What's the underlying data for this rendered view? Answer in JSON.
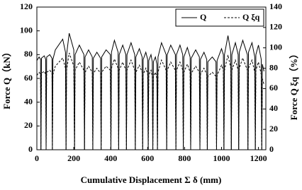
{
  "chart_data": {
    "type": "line",
    "x_label": "Cumulative Displacement Σ δ  (mm)",
    "y_label": "Force Q（kN）",
    "y2_label": "Force Q ξq（%）",
    "x": [
      0,
      12,
      20,
      22,
      25,
      40,
      48,
      50,
      53,
      70,
      82,
      84,
      87,
      100,
      140,
      155,
      158,
      161,
      175,
      200,
      204,
      207,
      230,
      255,
      258,
      261,
      280,
      300,
      303,
      306,
      325,
      345,
      348,
      351,
      375,
      398,
      401,
      404,
      420,
      440,
      443,
      446,
      465,
      482,
      485,
      488,
      510,
      530,
      533,
      536,
      555,
      570,
      573,
      576,
      590,
      600,
      603,
      606,
      618,
      625,
      628,
      631,
      642,
      650,
      653,
      656,
      675,
      700,
      703,
      706,
      725,
      750,
      753,
      756,
      775,
      790,
      793,
      796,
      815,
      830,
      833,
      836,
      860,
      880,
      883,
      886,
      905,
      920,
      923,
      926,
      950,
      970,
      973,
      976,
      1000,
      1010,
      1013,
      1016,
      1035,
      1050,
      1053,
      1056,
      1075,
      1090,
      1093,
      1096,
      1115,
      1140,
      1143,
      1146,
      1165,
      1180,
      1183,
      1186,
      1200,
      1215,
      1218,
      1221,
      1230
    ],
    "series": [
      {
        "name": "Q",
        "color": "#000000",
        "dash": false,
        "values": [
          75,
          78,
          76,
          0,
          77,
          79,
          76,
          0,
          78,
          80,
          77,
          0,
          76,
          84,
          93,
          82,
          0,
          80,
          98,
          84,
          0,
          80,
          88,
          80,
          0,
          78,
          84,
          78,
          0,
          77,
          82,
          77,
          0,
          78,
          84,
          80,
          0,
          82,
          92,
          82,
          0,
          80,
          88,
          80,
          0,
          80,
          90,
          80,
          0,
          78,
          85,
          78,
          0,
          76,
          82,
          76,
          0,
          75,
          80,
          74,
          0,
          74,
          78,
          72,
          0,
          78,
          90,
          80,
          0,
          80,
          88,
          80,
          0,
          80,
          88,
          80,
          0,
          78,
          86,
          78,
          0,
          77,
          84,
          78,
          0,
          76,
          82,
          76,
          0,
          74,
          78,
          74,
          0,
          75,
          85,
          80,
          0,
          80,
          96,
          82,
          0,
          80,
          90,
          80,
          0,
          82,
          92,
          80,
          0,
          82,
          90,
          78,
          0,
          80,
          88,
          76,
          0,
          72,
          66
        ]
      },
      {
        "name": "Q ξq",
        "color": "#000000",
        "dash": true,
        "axis": "y2",
        "values": [
          73,
          76,
          74,
          0,
          75,
          77,
          74,
          0,
          76,
          78,
          75,
          0,
          74,
          82,
          90,
          80,
          0,
          78,
          95,
          82,
          0,
          78,
          86,
          78,
          0,
          76,
          82,
          76,
          0,
          75,
          80,
          75,
          0,
          76,
          82,
          78,
          0,
          80,
          89,
          80,
          0,
          78,
          86,
          78,
          0,
          78,
          88,
          78,
          0,
          76,
          83,
          76,
          0,
          74,
          80,
          74,
          0,
          73,
          78,
          72,
          0,
          72,
          76,
          70,
          0,
          76,
          88,
          78,
          0,
          78,
          86,
          78,
          0,
          78,
          86,
          78,
          0,
          76,
          84,
          76,
          0,
          75,
          82,
          76,
          0,
          74,
          80,
          74,
          0,
          72,
          76,
          72,
          0,
          73,
          83,
          78,
          0,
          78,
          93,
          80,
          0,
          78,
          88,
          78,
          0,
          80,
          90,
          78,
          0,
          80,
          88,
          76,
          0,
          78,
          86,
          74,
          0,
          70,
          64
        ]
      }
    ],
    "xlim": [
      0,
      1240
    ],
    "xticks": [
      0,
      200,
      400,
      600,
      800,
      1000,
      1200
    ],
    "ylim": [
      0,
      120
    ],
    "yticks": [
      0,
      20,
      40,
      60,
      80,
      100,
      120
    ],
    "y2lim": [
      0,
      140
    ],
    "y2ticks": [
      0,
      20,
      40,
      60,
      80,
      100,
      120,
      140
    ],
    "legend": "top-right"
  }
}
